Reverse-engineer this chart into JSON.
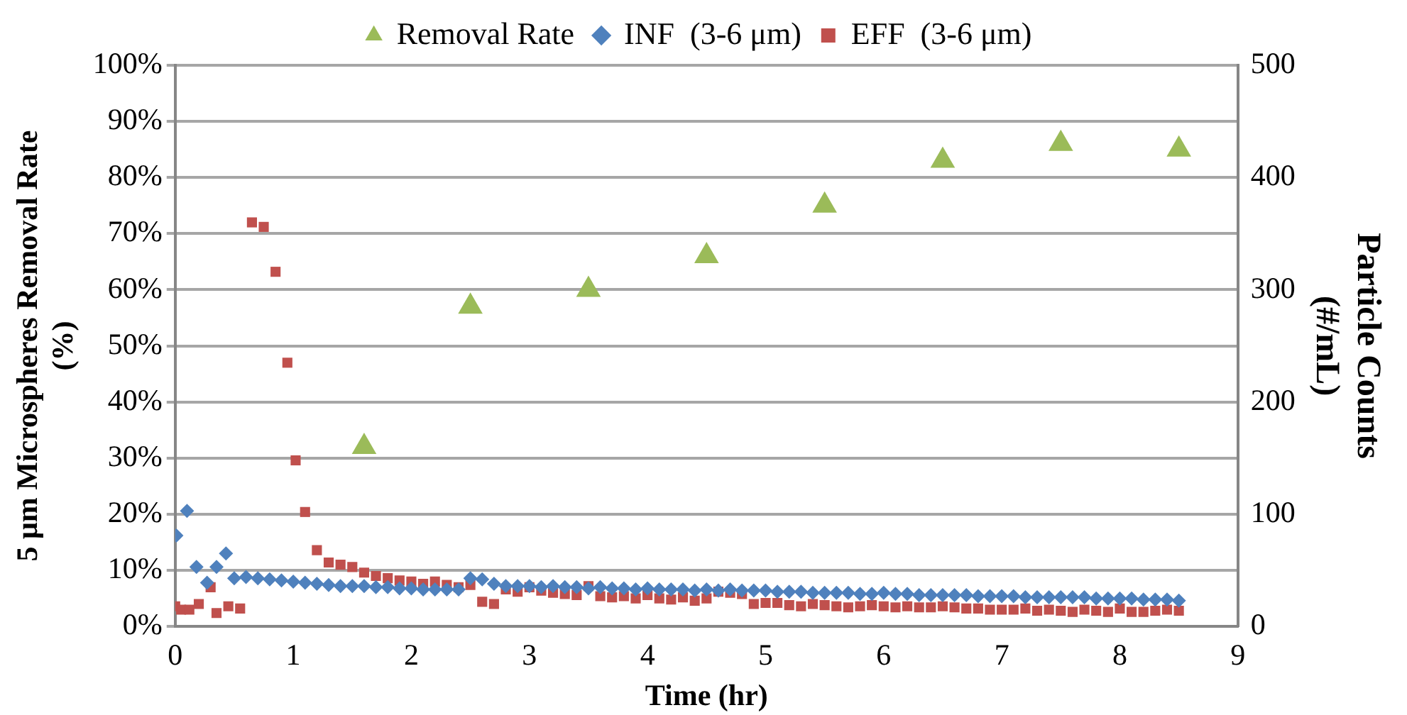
{
  "chart_data": {
    "type": "scatter",
    "xlabel": "Time (hr)",
    "ylabel": "5 μm Microspheres Removal Rate (%)",
    "y2label": "Particle Counts (#/mL)",
    "xlim": [
      0,
      9
    ],
    "xticks": [
      0,
      1,
      2,
      3,
      4,
      5,
      6,
      7,
      8,
      9
    ],
    "ylim": [
      0,
      100
    ],
    "yticks": [
      {
        "value": 0,
        "label": "0%"
      },
      {
        "value": 10,
        "label": "10%"
      },
      {
        "value": 20,
        "label": "20%"
      },
      {
        "value": 30,
        "label": "30%"
      },
      {
        "value": 40,
        "label": "40%"
      },
      {
        "value": 50,
        "label": "50%"
      },
      {
        "value": 60,
        "label": "60%"
      },
      {
        "value": 70,
        "label": "70%"
      },
      {
        "value": 80,
        "label": "80%"
      },
      {
        "value": 90,
        "label": "90%"
      },
      {
        "value": 100,
        "label": "100%"
      }
    ],
    "y2lim": [
      0,
      500
    ],
    "y2ticks": [
      0,
      100,
      200,
      300,
      400,
      500
    ],
    "grid": "y",
    "legend": "top",
    "series": [
      {
        "name": "Removal Rate",
        "color": "#9bbb59",
        "marker": "triangle",
        "x": [
          1.6,
          2.5,
          3.5,
          4.5,
          5.5,
          6.5,
          7.5,
          8.5
        ],
        "values": [
          32,
          57,
          60,
          66,
          75,
          83,
          86,
          85
        ]
      },
      {
        "name": "INF  (3-6 μm)",
        "color": "#4f81bd",
        "marker": "diamond",
        "axis": "y2",
        "x": [
          0.01,
          0.1,
          0.18,
          0.27,
          0.35,
          0.43,
          0.5,
          0.6,
          0.7,
          0.8,
          0.9,
          1.0,
          1.1,
          1.2,
          1.3,
          1.4,
          1.5,
          1.6,
          1.7,
          1.8,
          1.9,
          2.0,
          2.1,
          2.2,
          2.3,
          2.4,
          2.5,
          2.6,
          2.7,
          2.8,
          2.9,
          3.0,
          3.1,
          3.2,
          3.3,
          3.4,
          3.5,
          3.6,
          3.7,
          3.8,
          3.9,
          4.0,
          4.1,
          4.2,
          4.3,
          4.4,
          4.5,
          4.6,
          4.7,
          4.8,
          4.9,
          5.0,
          5.1,
          5.2,
          5.3,
          5.4,
          5.5,
          5.6,
          5.7,
          5.8,
          5.9,
          6.0,
          6.1,
          6.2,
          6.3,
          6.4,
          6.5,
          6.6,
          6.7,
          6.8,
          6.9,
          7.0,
          7.1,
          7.2,
          7.3,
          7.4,
          7.5,
          7.6,
          7.7,
          7.8,
          7.9,
          8.0,
          8.1,
          8.2,
          8.3,
          8.4,
          8.5
        ],
        "values": [
          81,
          103,
          53,
          39,
          53,
          65,
          43,
          44,
          43,
          42,
          41,
          40,
          39,
          38,
          37,
          36,
          36,
          36,
          35,
          35,
          34,
          34,
          33,
          33,
          33,
          33,
          43,
          42,
          38,
          36,
          36,
          36,
          35,
          36,
          35,
          35,
          34,
          35,
          34,
          34,
          33,
          34,
          33,
          33,
          33,
          32,
          33,
          32,
          33,
          32,
          32,
          32,
          31,
          31,
          31,
          30,
          30,
          30,
          30,
          29,
          29,
          30,
          29,
          29,
          28,
          28,
          28,
          28,
          28,
          27,
          27,
          27,
          27,
          26,
          26,
          26,
          26,
          26,
          26,
          25,
          25,
          25,
          25,
          24,
          24,
          24,
          23
        ]
      },
      {
        "name": "EFF  (3-6 μm)",
        "color": "#c0504d",
        "marker": "square",
        "axis": "y2",
        "x": [
          0,
          0.05,
          0.12,
          0.2,
          0.3,
          0.35,
          0.45,
          0.55,
          0.65,
          0.75,
          0.85,
          0.95,
          1.02,
          1.1,
          1.2,
          1.3,
          1.4,
          1.5,
          1.6,
          1.7,
          1.8,
          1.9,
          2.0,
          2.1,
          2.2,
          2.3,
          2.4,
          2.5,
          2.6,
          2.7,
          2.8,
          2.9,
          3.0,
          3.1,
          3.2,
          3.3,
          3.4,
          3.5,
          3.6,
          3.7,
          3.8,
          3.9,
          4.0,
          4.1,
          4.2,
          4.3,
          4.4,
          4.5,
          4.6,
          4.7,
          4.8,
          4.9,
          5.0,
          5.1,
          5.2,
          5.3,
          5.4,
          5.5,
          5.6,
          5.7,
          5.8,
          5.9,
          6.0,
          6.1,
          6.2,
          6.3,
          6.4,
          6.5,
          6.6,
          6.7,
          6.8,
          6.9,
          7.0,
          7.1,
          7.2,
          7.3,
          7.4,
          7.5,
          7.6,
          7.7,
          7.8,
          7.9,
          8.0,
          8.1,
          8.2,
          8.3,
          8.4,
          8.5
        ],
        "values": [
          18,
          15,
          15,
          20,
          35,
          12,
          18,
          16,
          360,
          356,
          316,
          235,
          148,
          102,
          68,
          57,
          55,
          53,
          48,
          45,
          43,
          41,
          40,
          38,
          40,
          37,
          35,
          37,
          22,
          20,
          33,
          31,
          35,
          32,
          30,
          29,
          28,
          36,
          27,
          26,
          27,
          25,
          28,
          25,
          24,
          26,
          23,
          25,
          31,
          30,
          29,
          20,
          21,
          21,
          19,
          18,
          20,
          19,
          18,
          17,
          18,
          19,
          18,
          17,
          18,
          17,
          17,
          18,
          17,
          16,
          16,
          15,
          15,
          15,
          16,
          14,
          15,
          14,
          13,
          15,
          14,
          13,
          16,
          13,
          13,
          14,
          15,
          14
        ]
      }
    ]
  }
}
